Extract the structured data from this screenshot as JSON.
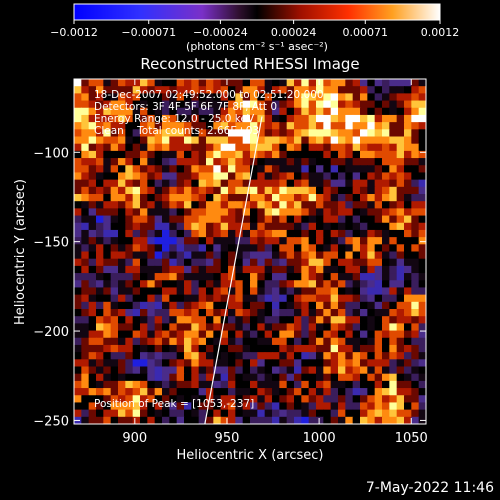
{
  "chart_data": [
    {
      "type": "heatmap",
      "title": "Reconstructed RHESSI Image",
      "xlabel": "Heliocentric X (arcsec)",
      "ylabel": "Heliocentric Y (arcsec)",
      "xlim": [
        867,
        1058
      ],
      "ylim": [
        -252,
        -59
      ],
      "x_ticks": [
        900,
        950,
        1000,
        1050
      ],
      "y_ticks": [
        -100,
        -150,
        -200,
        -250
      ],
      "x_tick_labels": [
        "900",
        "950",
        "1000",
        "1050"
      ],
      "y_tick_labels": [
        "−100",
        "−150",
        "−200",
        "−250"
      ],
      "grid": false,
      "annotations": [
        "18-Dec-2007 02:49:52.000 to 02:51:20.000",
        "Detectors: 3F 4F 5F 6F 7F 8F, Att 0",
        "Energy Range: 12.0 - 25.0 keV",
        "Clean    Total counts: 2.66E+03",
        "Position of Peak = [1053,-237]"
      ],
      "peak": [
        1053,
        -237
      ],
      "limb_line": [
        [
          938,
          -252
        ],
        [
          969,
          -80
        ]
      ],
      "colormap": [
        "#1f1fdf",
        "#3a2ab0",
        "#4a2c8a",
        "#3a1d5c",
        "#120612",
        "#000000",
        "#6a0800",
        "#b01a00",
        "#e04a00",
        "#ff8a10",
        "#ffc43a",
        "#ffff9a",
        "#ffffff"
      ],
      "grid_size": [
        48,
        48
      ],
      "seed": 20071218
    },
    {
      "type": "colorbar",
      "range": [
        -0.0012,
        0.0012
      ],
      "tick_values": [
        -0.0012,
        -0.00071,
        -0.00024,
        0.00024,
        0.00071,
        0.0012
      ],
      "tick_labels": [
        "−0.0012",
        "−0.00071",
        "−0.00024",
        "0.00024",
        "0.00071",
        "0.0012"
      ],
      "unit_label": "(photons cm⁻² s⁻¹ asec⁻²)"
    }
  ],
  "timestamp": "7-May-2022 11:46"
}
